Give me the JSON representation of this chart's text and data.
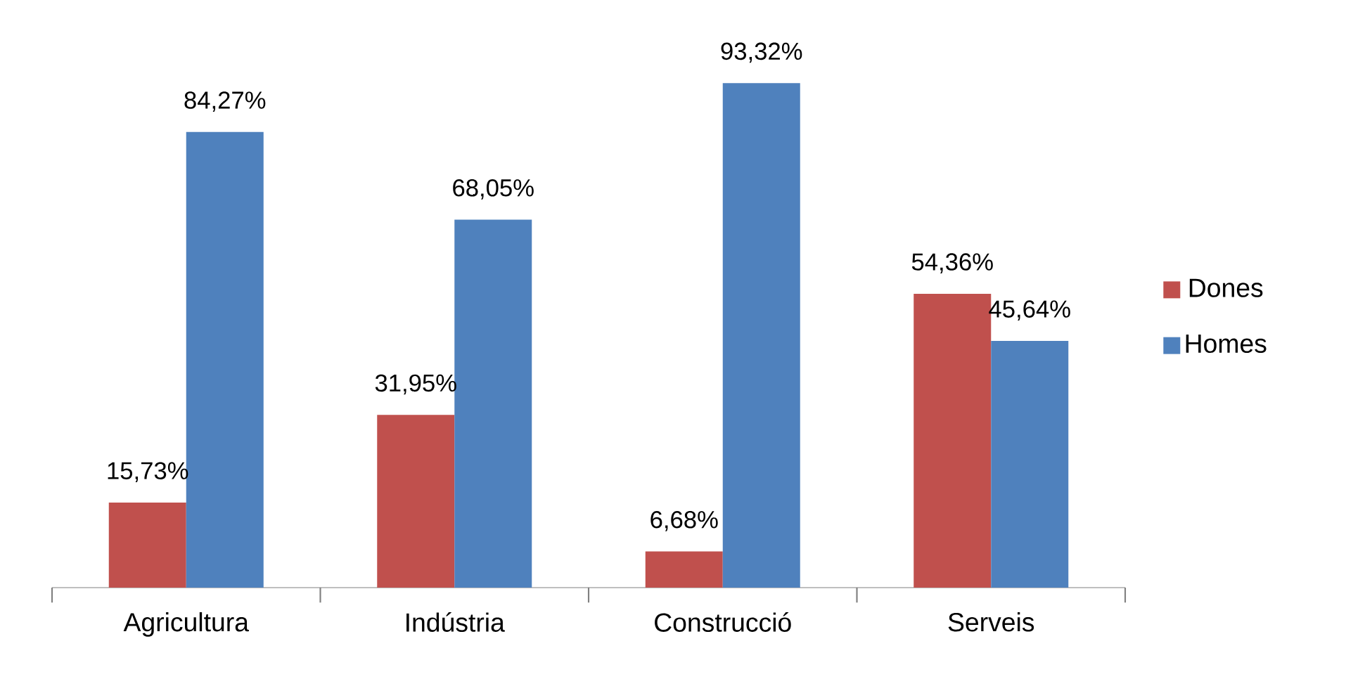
{
  "chart_data": {
    "type": "bar",
    "categories": [
      "Agricultura",
      "Indústria",
      "Construcció",
      "Serveis"
    ],
    "series": [
      {
        "name": "Dones",
        "color": "#c0504d",
        "values": [
          15.73,
          31.95,
          6.68,
          54.36
        ],
        "value_labels": [
          "15,73%",
          "31,95%",
          "6,68%",
          "54,36%"
        ]
      },
      {
        "name": "Homes",
        "color": "#4f81bd",
        "values": [
          84.27,
          68.05,
          93.32,
          45.64
        ],
        "value_labels": [
          "84,27%",
          "68,05%",
          "93,32%",
          "45,64%"
        ]
      }
    ],
    "legend": "right"
  }
}
